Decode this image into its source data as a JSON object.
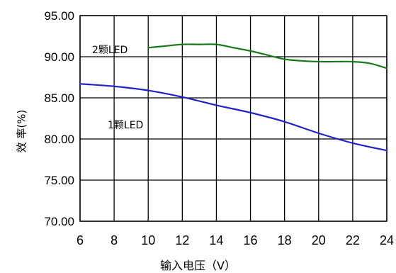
{
  "chart_data": {
    "type": "line",
    "xlabel": "输入电压（V）",
    "ylabel": "效 率(%)",
    "xlim": [
      6,
      24
    ],
    "ylim": [
      70,
      95
    ],
    "x_ticks": [
      "6",
      "8",
      "10",
      "12",
      "14",
      "16",
      "18",
      "20",
      "22",
      "24"
    ],
    "y_ticks": [
      "95.00",
      "90.00",
      "85.00",
      "80.00",
      "75.00",
      "70.00"
    ],
    "grid": true,
    "series": [
      {
        "name": "2颗LED",
        "color": "#1a7a1a",
        "x": [
          10,
          11,
          12,
          13,
          14,
          15,
          16,
          17,
          18,
          19,
          20,
          21,
          22,
          23,
          24
        ],
        "y": [
          91.1,
          91.3,
          91.5,
          91.5,
          91.5,
          91.1,
          90.7,
          90.2,
          89.7,
          89.5,
          89.4,
          89.4,
          89.4,
          89.2,
          88.6
        ]
      },
      {
        "name": "1颗LED",
        "color": "#1f24c8",
        "x": [
          6,
          8,
          10,
          12,
          14,
          16,
          18,
          20,
          22,
          24
        ],
        "y": [
          86.7,
          86.4,
          85.9,
          85.1,
          84.1,
          83.2,
          82.1,
          80.7,
          79.5,
          78.6
        ]
      }
    ]
  }
}
